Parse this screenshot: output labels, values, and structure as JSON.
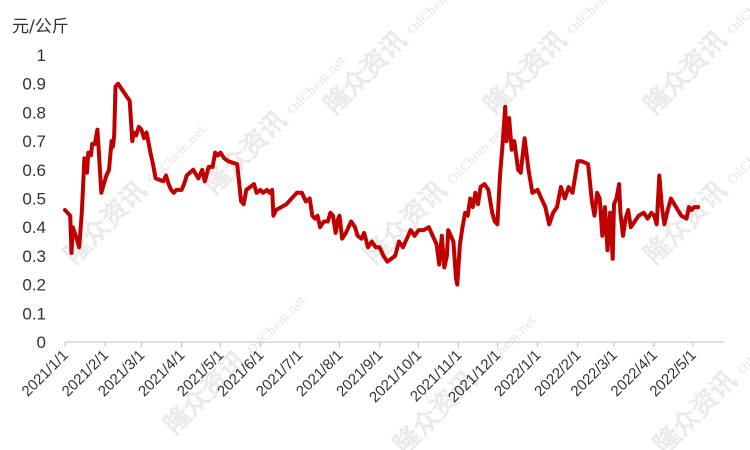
{
  "chart_data": {
    "type": "line",
    "unit_label": "元/公斤",
    "ylim": [
      0,
      1
    ],
    "yticks": [
      "0",
      "0.1",
      "0.2",
      "0.3",
      "0.4",
      "0.5",
      "0.6",
      "0.7",
      "0.8",
      "0.9",
      "1"
    ],
    "xlim": [
      "2021-01-01",
      "2022-05-25"
    ],
    "xticks": [
      {
        "label": "2021/1/1",
        "date": "2021-01-01"
      },
      {
        "label": "2021/2/1",
        "date": "2021-02-01"
      },
      {
        "label": "2021/3/1",
        "date": "2021-03-01"
      },
      {
        "label": "2021/4/1",
        "date": "2021-04-01"
      },
      {
        "label": "2021/5/1",
        "date": "2021-05-01"
      },
      {
        "label": "2021/6/1",
        "date": "2021-06-01"
      },
      {
        "label": "2021/7/1",
        "date": "2021-07-01"
      },
      {
        "label": "2021/8/1",
        "date": "2021-08-01"
      },
      {
        "label": "2021/9/1",
        "date": "2021-09-01"
      },
      {
        "label": "2021/10/1",
        "date": "2021-10-01"
      },
      {
        "label": "2021/11/1",
        "date": "2021-11-01"
      },
      {
        "label": "2021/12/1",
        "date": "2021-12-01"
      },
      {
        "label": "2022/1/1",
        "date": "2022-01-01"
      },
      {
        "label": "2022/2/1",
        "date": "2022-02-01"
      },
      {
        "label": "2022/3/1",
        "date": "2022-03-01"
      },
      {
        "label": "2022/4/1",
        "date": "2022-04-01"
      },
      {
        "label": "2022/5/1",
        "date": "2022-05-01"
      }
    ],
    "grid": false,
    "legend": "none",
    "series": [
      {
        "color": "#c00000",
        "points": [
          [
            "2021-01-01",
            0.46
          ],
          [
            "2021-01-05",
            0.44
          ],
          [
            "2021-01-06",
            0.31
          ],
          [
            "2021-01-07",
            0.4
          ],
          [
            "2021-01-10",
            0.36
          ],
          [
            "2021-01-12",
            0.33
          ],
          [
            "2021-01-14",
            0.45
          ],
          [
            "2021-01-16",
            0.64
          ],
          [
            "2021-01-18",
            0.59
          ],
          [
            "2021-01-19",
            0.66
          ],
          [
            "2021-01-21",
            0.65
          ],
          [
            "2021-01-22",
            0.69
          ],
          [
            "2021-01-24",
            0.69
          ],
          [
            "2021-01-26",
            0.74
          ],
          [
            "2021-01-27",
            0.67
          ],
          [
            "2021-01-29",
            0.52
          ],
          [
            "2021-01-31",
            0.55
          ],
          [
            "2021-02-02",
            0.58
          ],
          [
            "2021-02-04",
            0.6
          ],
          [
            "2021-02-06",
            0.7
          ],
          [
            "2021-02-07",
            0.68
          ],
          [
            "2021-02-08",
            0.72
          ],
          [
            "2021-02-09",
            0.89
          ],
          [
            "2021-02-11",
            0.9
          ],
          [
            "2021-02-20",
            0.84
          ],
          [
            "2021-02-22",
            0.7
          ],
          [
            "2021-02-23",
            0.73
          ],
          [
            "2021-02-25",
            0.72
          ],
          [
            "2021-02-27",
            0.75
          ],
          [
            "2021-03-01",
            0.74
          ],
          [
            "2021-03-03",
            0.71
          ],
          [
            "2021-03-05",
            0.73
          ],
          [
            "2021-03-08",
            0.66
          ],
          [
            "2021-03-10",
            0.62
          ],
          [
            "2021-03-12",
            0.57
          ],
          [
            "2021-03-18",
            0.56
          ],
          [
            "2021-03-20",
            0.58
          ],
          [
            "2021-03-22",
            0.55
          ],
          [
            "2021-03-24",
            0.53
          ],
          [
            "2021-03-26",
            0.52
          ],
          [
            "2021-03-28",
            0.53
          ],
          [
            "2021-04-01",
            0.53
          ],
          [
            "2021-04-03",
            0.55
          ],
          [
            "2021-04-05",
            0.58
          ],
          [
            "2021-04-10",
            0.6
          ],
          [
            "2021-04-14",
            0.57
          ],
          [
            "2021-04-17",
            0.6
          ],
          [
            "2021-04-19",
            0.56
          ],
          [
            "2021-04-22",
            0.61
          ],
          [
            "2021-04-25",
            0.61
          ],
          [
            "2021-04-27",
            0.66
          ],
          [
            "2021-04-29",
            0.65
          ],
          [
            "2021-05-01",
            0.66
          ],
          [
            "2021-05-04",
            0.64
          ],
          [
            "2021-05-07",
            0.63
          ],
          [
            "2021-05-14",
            0.62
          ],
          [
            "2021-05-17",
            0.49
          ],
          [
            "2021-05-19",
            0.48
          ],
          [
            "2021-05-21",
            0.53
          ],
          [
            "2021-05-24",
            0.54
          ],
          [
            "2021-05-27",
            0.55
          ],
          [
            "2021-05-29",
            0.52
          ],
          [
            "2021-06-01",
            0.53
          ],
          [
            "2021-06-03",
            0.52
          ],
          [
            "2021-06-06",
            0.53
          ],
          [
            "2021-06-08",
            0.52
          ],
          [
            "2021-06-10",
            0.53
          ],
          [
            "2021-06-11",
            0.44
          ],
          [
            "2021-06-13",
            0.46
          ],
          [
            "2021-06-17",
            0.47
          ],
          [
            "2021-06-21",
            0.48
          ],
          [
            "2021-06-25",
            0.5
          ],
          [
            "2021-06-29",
            0.52
          ],
          [
            "2021-07-01",
            0.52
          ],
          [
            "2021-07-03",
            0.52
          ],
          [
            "2021-07-06",
            0.49
          ],
          [
            "2021-07-09",
            0.5
          ],
          [
            "2021-07-11",
            0.44
          ],
          [
            "2021-07-13",
            0.43
          ],
          [
            "2021-07-15",
            0.44
          ],
          [
            "2021-07-17",
            0.4
          ],
          [
            "2021-07-20",
            0.42
          ],
          [
            "2021-07-23",
            0.42
          ],
          [
            "2021-07-25",
            0.45
          ],
          [
            "2021-07-27",
            0.44
          ],
          [
            "2021-07-29",
            0.38
          ],
          [
            "2021-07-31",
            0.43
          ],
          [
            "2021-08-01",
            0.44
          ],
          [
            "2021-08-03",
            0.36
          ],
          [
            "2021-08-06",
            0.38
          ],
          [
            "2021-08-10",
            0.42
          ],
          [
            "2021-08-13",
            0.4
          ],
          [
            "2021-08-15",
            0.37
          ],
          [
            "2021-08-18",
            0.36
          ],
          [
            "2021-08-20",
            0.38
          ],
          [
            "2021-08-23",
            0.33
          ],
          [
            "2021-08-26",
            0.35
          ],
          [
            "2021-08-29",
            0.33
          ],
          [
            "2021-09-01",
            0.33
          ],
          [
            "2021-09-04",
            0.3
          ],
          [
            "2021-09-07",
            0.28
          ],
          [
            "2021-09-10",
            0.29
          ],
          [
            "2021-09-13",
            0.3
          ],
          [
            "2021-09-16",
            0.35
          ],
          [
            "2021-09-19",
            0.33
          ],
          [
            "2021-09-22",
            0.36
          ],
          [
            "2021-09-25",
            0.39
          ],
          [
            "2021-09-28",
            0.37
          ],
          [
            "2021-10-01",
            0.39
          ],
          [
            "2021-10-05",
            0.39
          ],
          [
            "2021-10-09",
            0.4
          ],
          [
            "2021-10-11",
            0.38
          ],
          [
            "2021-10-13",
            0.36
          ],
          [
            "2021-10-15",
            0.34
          ],
          [
            "2021-10-17",
            0.27
          ],
          [
            "2021-10-19",
            0.37
          ],
          [
            "2021-10-21",
            0.26
          ],
          [
            "2021-10-23",
            0.3
          ],
          [
            "2021-10-24",
            0.39
          ],
          [
            "2021-10-26",
            0.37
          ],
          [
            "2021-10-28",
            0.35
          ],
          [
            "2021-10-30",
            0.22
          ],
          [
            "2021-10-31",
            0.2
          ],
          [
            "2021-11-02",
            0.34
          ],
          [
            "2021-11-04",
            0.4
          ],
          [
            "2021-11-06",
            0.45
          ],
          [
            "2021-11-08",
            0.44
          ],
          [
            "2021-11-10",
            0.5
          ],
          [
            "2021-11-12",
            0.47
          ],
          [
            "2021-11-14",
            0.52
          ],
          [
            "2021-11-16",
            0.48
          ],
          [
            "2021-11-18",
            0.54
          ],
          [
            "2021-11-21",
            0.55
          ],
          [
            "2021-11-24",
            0.53
          ],
          [
            "2021-11-27",
            0.45
          ],
          [
            "2021-11-29",
            0.42
          ],
          [
            "2021-12-01",
            0.41
          ],
          [
            "2021-12-03",
            0.58
          ],
          [
            "2021-12-05",
            0.69
          ],
          [
            "2021-12-07",
            0.82
          ],
          [
            "2021-12-08",
            0.7
          ],
          [
            "2021-12-10",
            0.78
          ],
          [
            "2021-12-12",
            0.67
          ],
          [
            "2021-12-14",
            0.7
          ],
          [
            "2021-12-17",
            0.6
          ],
          [
            "2021-12-19",
            0.59
          ],
          [
            "2021-12-22",
            0.71
          ],
          [
            "2021-12-25",
            0.6
          ],
          [
            "2021-12-28",
            0.52
          ],
          [
            "2022-01-01",
            0.53
          ],
          [
            "2022-01-04",
            0.5
          ],
          [
            "2022-01-07",
            0.47
          ],
          [
            "2022-01-10",
            0.41
          ],
          [
            "2022-01-13",
            0.45
          ],
          [
            "2022-01-16",
            0.47
          ],
          [
            "2022-01-19",
            0.54
          ],
          [
            "2022-01-22",
            0.5
          ],
          [
            "2022-01-25",
            0.54
          ],
          [
            "2022-01-28",
            0.52
          ],
          [
            "2022-02-01",
            0.63
          ],
          [
            "2022-02-04",
            0.63
          ],
          [
            "2022-02-09",
            0.62
          ],
          [
            "2022-02-12",
            0.49
          ],
          [
            "2022-02-14",
            0.44
          ],
          [
            "2022-02-16",
            0.52
          ],
          [
            "2022-02-18",
            0.5
          ],
          [
            "2022-02-20",
            0.37
          ],
          [
            "2022-02-22",
            0.47
          ],
          [
            "2022-02-24",
            0.32
          ],
          [
            "2022-02-26",
            0.45
          ],
          [
            "2022-02-28",
            0.29
          ],
          [
            "2022-03-01",
            0.48
          ],
          [
            "2022-03-03",
            0.5
          ],
          [
            "2022-03-05",
            0.55
          ],
          [
            "2022-03-06",
            0.45
          ],
          [
            "2022-03-08",
            0.37
          ],
          [
            "2022-03-10",
            0.43
          ],
          [
            "2022-03-12",
            0.46
          ],
          [
            "2022-03-14",
            0.4
          ],
          [
            "2022-03-17",
            0.42
          ],
          [
            "2022-03-20",
            0.44
          ],
          [
            "2022-03-24",
            0.45
          ],
          [
            "2022-03-27",
            0.43
          ],
          [
            "2022-03-30",
            0.45
          ],
          [
            "2022-04-01",
            0.44
          ],
          [
            "2022-04-03",
            0.41
          ],
          [
            "2022-04-05",
            0.58
          ],
          [
            "2022-04-07",
            0.47
          ],
          [
            "2022-04-09",
            0.41
          ],
          [
            "2022-04-11",
            0.45
          ],
          [
            "2022-04-14",
            0.5
          ],
          [
            "2022-04-18",
            0.47
          ],
          [
            "2022-04-22",
            0.44
          ],
          [
            "2022-04-26",
            0.43
          ],
          [
            "2022-04-28",
            0.47
          ],
          [
            "2022-04-30",
            0.46
          ],
          [
            "2022-05-02",
            0.47
          ],
          [
            "2022-05-05",
            0.47
          ]
        ]
      }
    ]
  },
  "watermarks": [
    {
      "text": "隆众资讯",
      "sub": "OilChem.net"
    }
  ]
}
